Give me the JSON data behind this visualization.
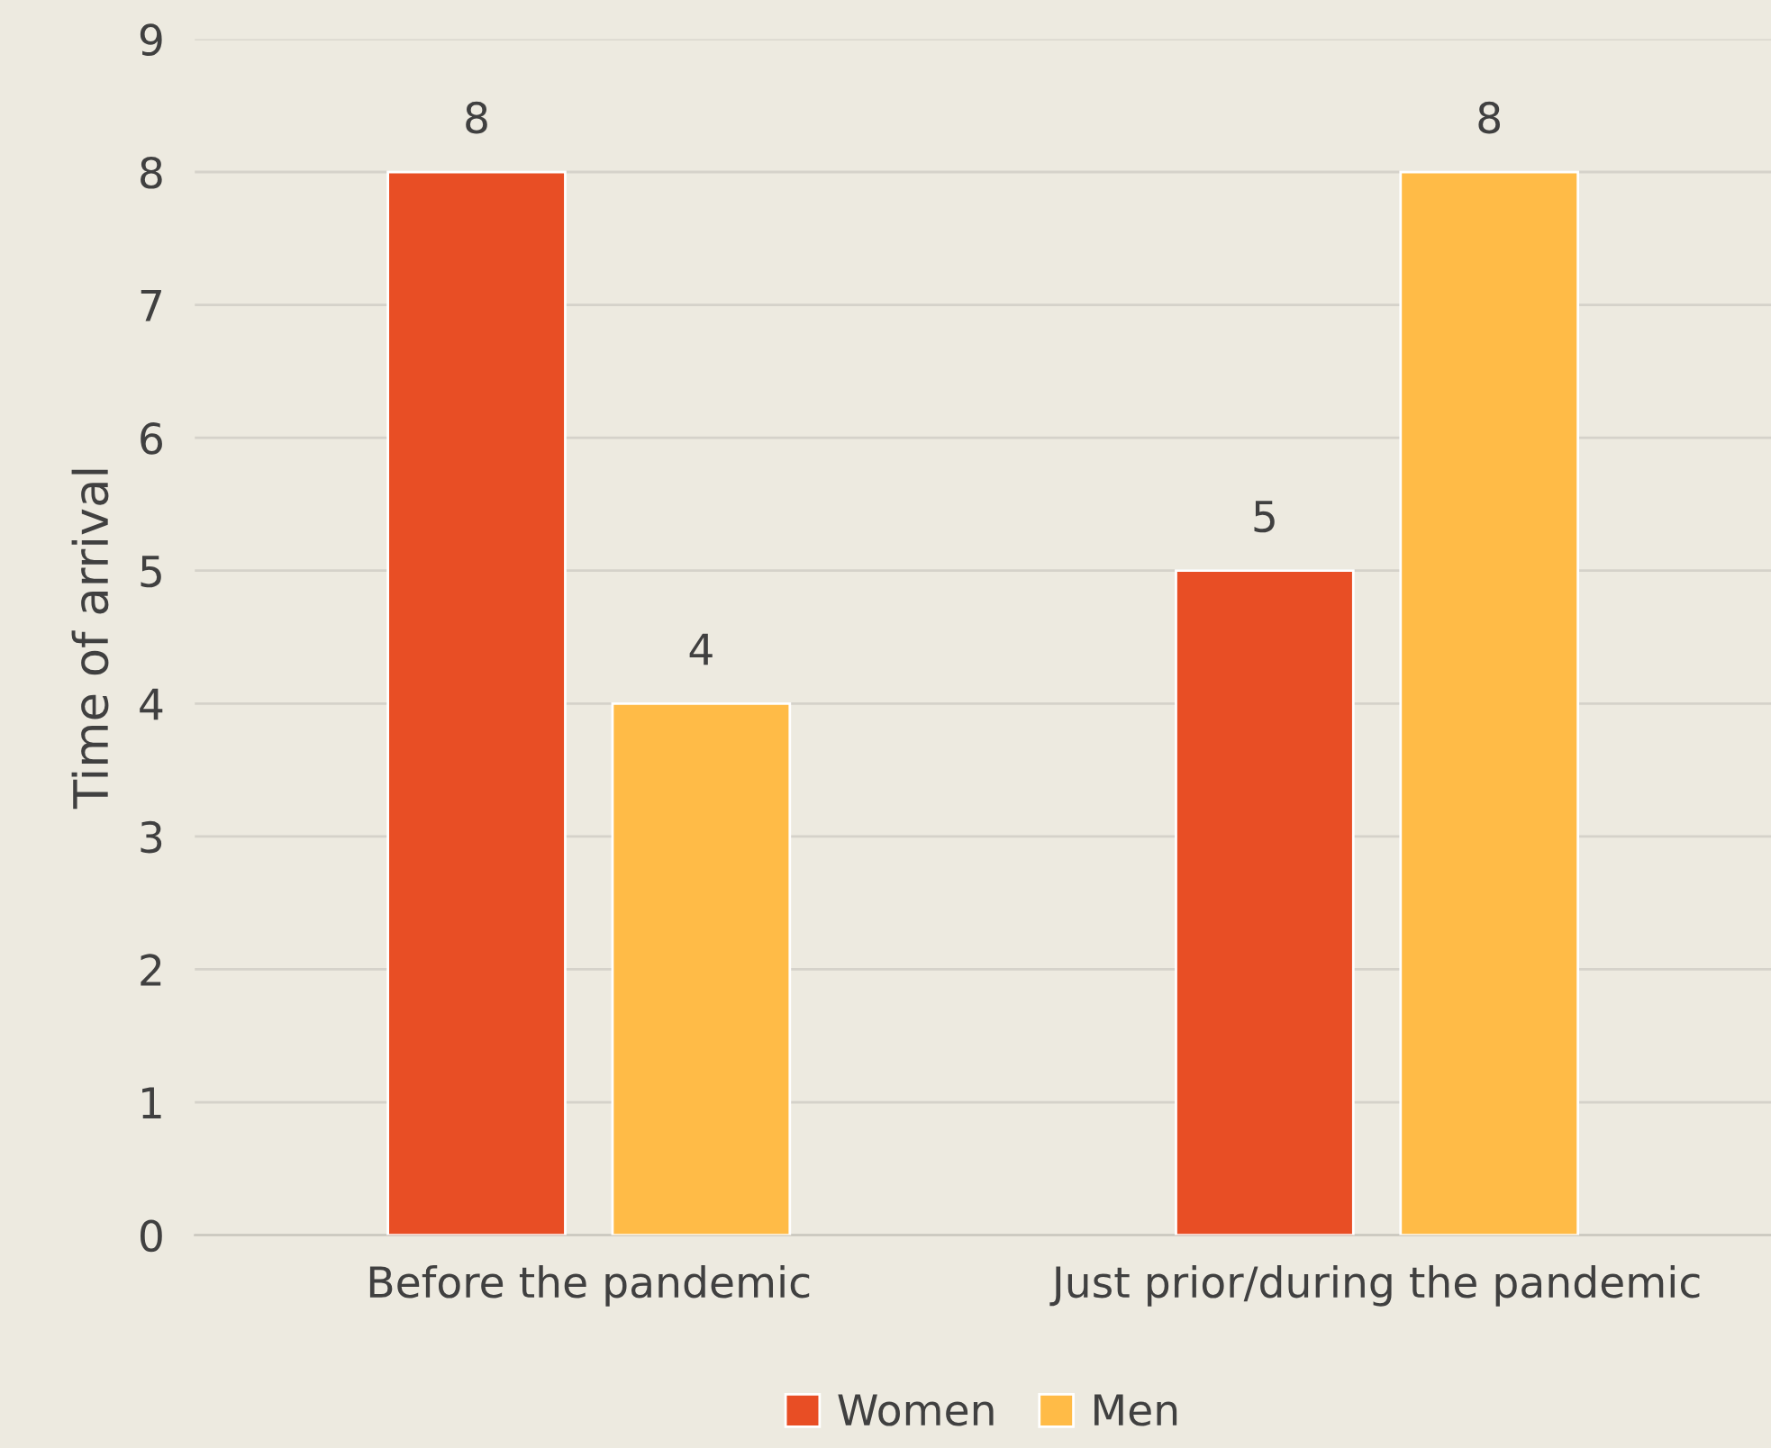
{
  "chart_data": {
    "type": "bar",
    "ylabel": "Time of arrival",
    "categories": [
      "Before the pandemic",
      "Just prior/during the pandemic"
    ],
    "series": [
      {
        "name": "Women",
        "color": "#e84e25",
        "values": [
          8,
          5
        ]
      },
      {
        "name": "Men",
        "color": "#ffbb47",
        "values": [
          4,
          8
        ]
      }
    ],
    "ylim": [
      0,
      9
    ],
    "yticks": [
      0,
      1,
      2,
      3,
      4,
      5,
      6,
      7,
      8,
      9
    ],
    "grid": "y",
    "legend": "bottom",
    "data_labels": true
  }
}
